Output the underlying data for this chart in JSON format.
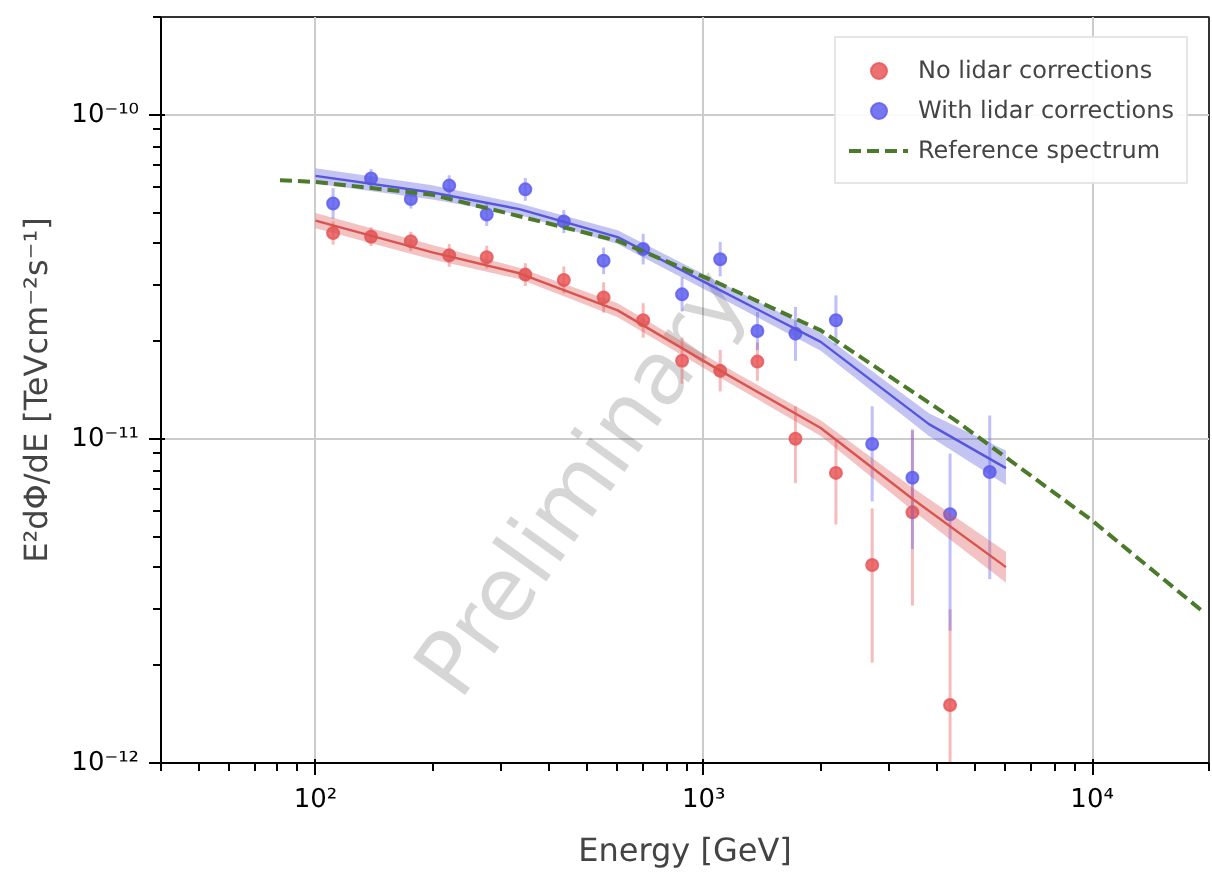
{
  "chart_data": {
    "type": "scatter",
    "xlabel": "Energy [GeV]",
    "ylabel": "E²dΦ/dE [TeVcm⁻²s⁻¹]",
    "xlim": [
      40,
      20000
    ],
    "ylim": [
      1e-12,
      2e-10
    ],
    "log": "xy",
    "grid": true,
    "legend": "top right",
    "xticks": [
      {
        "value": 100,
        "label": "10²"
      },
      {
        "value": 1000,
        "label": "10³"
      },
      {
        "value": 10000,
        "label": "10⁴"
      }
    ],
    "yticks": [
      {
        "value": 1e-12,
        "label": "10⁻¹²"
      },
      {
        "value": 1e-11,
        "label": "10⁻¹¹"
      },
      {
        "value": 1e-10,
        "label": "10⁻¹⁰"
      }
    ],
    "annotations": [
      "Preliminary"
    ],
    "series": [
      {
        "name": "No lidar corrections",
        "marker": "circle",
        "color": "#e8585b",
        "x": [
          111,
          139,
          176,
          221,
          276,
          347,
          436,
          552,
          698,
          879,
          1102,
          1374,
          1722,
          2189,
          2714,
          3445,
          4307
        ],
        "values": [
          4.31e-11,
          4.2e-11,
          4.07e-11,
          3.68e-11,
          3.63e-11,
          3.21e-11,
          3.09e-11,
          2.73e-11,
          2.32e-11,
          1.74e-11,
          1.62e-11,
          1.73e-11,
          1e-11,
          7.85e-12,
          4.08e-12,
          5.93e-12,
          1.51e-12
        ],
        "errors": [
          [
            3.97e-11,
            4.68e-11
          ],
          [
            3.93e-11,
            4.49e-11
          ],
          [
            3.8e-11,
            4.35e-11
          ],
          [
            3.39e-11,
            3.99e-11
          ],
          [
            3.35e-11,
            3.94e-11
          ],
          [
            2.96e-11,
            3.48e-11
          ],
          [
            2.81e-11,
            3.4e-11
          ],
          [
            2.45e-11,
            3.04e-11
          ],
          [
            2.05e-11,
            2.62e-11
          ],
          [
            1.48e-11,
            2.05e-11
          ],
          [
            1.4e-11,
            1.88e-11
          ],
          [
            1.51e-11,
            1.98e-11
          ],
          [
            7.3e-12,
            1.26e-11
          ],
          [
            5.44e-12,
            9.9e-12
          ],
          [
            2.04e-12,
            6.1e-12
          ],
          [
            3.06e-12,
            1.06e-11
          ],
          [
            1e-12,
            2.98e-12
          ]
        ]
      },
      {
        "name": "With lidar corrections",
        "marker": "circle",
        "color": "#5f5ff0",
        "x": [
          111,
          139,
          176,
          221,
          276,
          347,
          436,
          552,
          698,
          879,
          1102,
          1374,
          1722,
          2189,
          2714,
          3445,
          4307,
          5449
        ],
        "values": [
          5.32e-11,
          6.35e-11,
          5.49e-11,
          6.04e-11,
          4.92e-11,
          5.88e-11,
          4.68e-11,
          3.54e-11,
          3.85e-11,
          2.79e-11,
          3.58e-11,
          2.15e-11,
          2.11e-11,
          2.32e-11,
          9.64e-12,
          7.58e-12,
          5.85e-12,
          7.9e-12
        ],
        "errors": [
          [
            4.77e-11,
            5.93e-11
          ],
          [
            5.93e-11,
            6.79e-11
          ],
          [
            5.13e-11,
            5.87e-11
          ],
          [
            5.6e-11,
            6.5e-11
          ],
          [
            4.53e-11,
            5.34e-11
          ],
          [
            5.42e-11,
            6.38e-11
          ],
          [
            4.31e-11,
            5.08e-11
          ],
          [
            3.22e-11,
            3.89e-11
          ],
          [
            3.45e-11,
            4.29e-11
          ],
          [
            2.47e-11,
            3.15e-11
          ],
          [
            3.17e-11,
            4.05e-11
          ],
          [
            1.88e-11,
            2.46e-11
          ],
          [
            1.74e-11,
            2.55e-11
          ],
          [
            1.94e-11,
            2.77e-11
          ],
          [
            6.41e-12,
            1.26e-11
          ],
          [
            4.57e-12,
            1.07e-11
          ],
          [
            2.56e-12,
            9e-12
          ],
          [
            3.69e-12,
            1.18e-11
          ]
        ]
      },
      {
        "type": "line",
        "color": "#d9534f",
        "x": [
          100,
          200,
          335,
          600,
          1085,
          2000,
          3445,
          6000
        ],
        "values": [
          4.71e-11,
          3.76e-11,
          3.24e-11,
          2.49e-11,
          1.64e-11,
          1.08e-11,
          6.53e-12,
          4.02e-12
        ],
        "lower": [
          4.46e-11,
          3.57e-11,
          3.11e-11,
          2.37e-11,
          1.56e-11,
          1.02e-11,
          6.02e-12,
          3.6e-12
        ],
        "upper": [
          4.97e-11,
          3.96e-11,
          3.37e-11,
          2.62e-11,
          1.72e-11,
          1.14e-11,
          7.08e-12,
          4.48e-12
        ]
      },
      {
        "type": "line",
        "color": "#5555dd",
        "x": [
          100,
          200,
          335,
          600,
          1085,
          2000,
          3800,
          6000
        ],
        "values": [
          6.47e-11,
          5.75e-11,
          5.11e-11,
          4.19e-11,
          2.9e-11,
          1.99e-11,
          1.11e-11,
          8.12e-12
        ],
        "lower": [
          6.13e-11,
          5.47e-11,
          4.9e-11,
          3.99e-11,
          2.75e-11,
          1.87e-11,
          1.02e-11,
          7.2e-12
        ],
        "upper": [
          6.83e-11,
          6.05e-11,
          5.32e-11,
          4.4e-11,
          3.06e-11,
          2.12e-11,
          1.2e-11,
          9.2e-12
        ]
      },
      {
        "name": "Reference spectrum",
        "type": "line",
        "line_style": "dashed",
        "color": "#4a7a2a",
        "x": [
          81,
          100,
          200,
          335,
          600,
          1085,
          2000,
          4446,
          9917,
          19300
        ],
        "values": [
          6.27e-11,
          6.2e-11,
          5.66e-11,
          4.86e-11,
          4.08e-11,
          3.03e-11,
          2.16e-11,
          1.14e-11,
          5.64e-12,
          2.93e-12
        ]
      }
    ]
  }
}
